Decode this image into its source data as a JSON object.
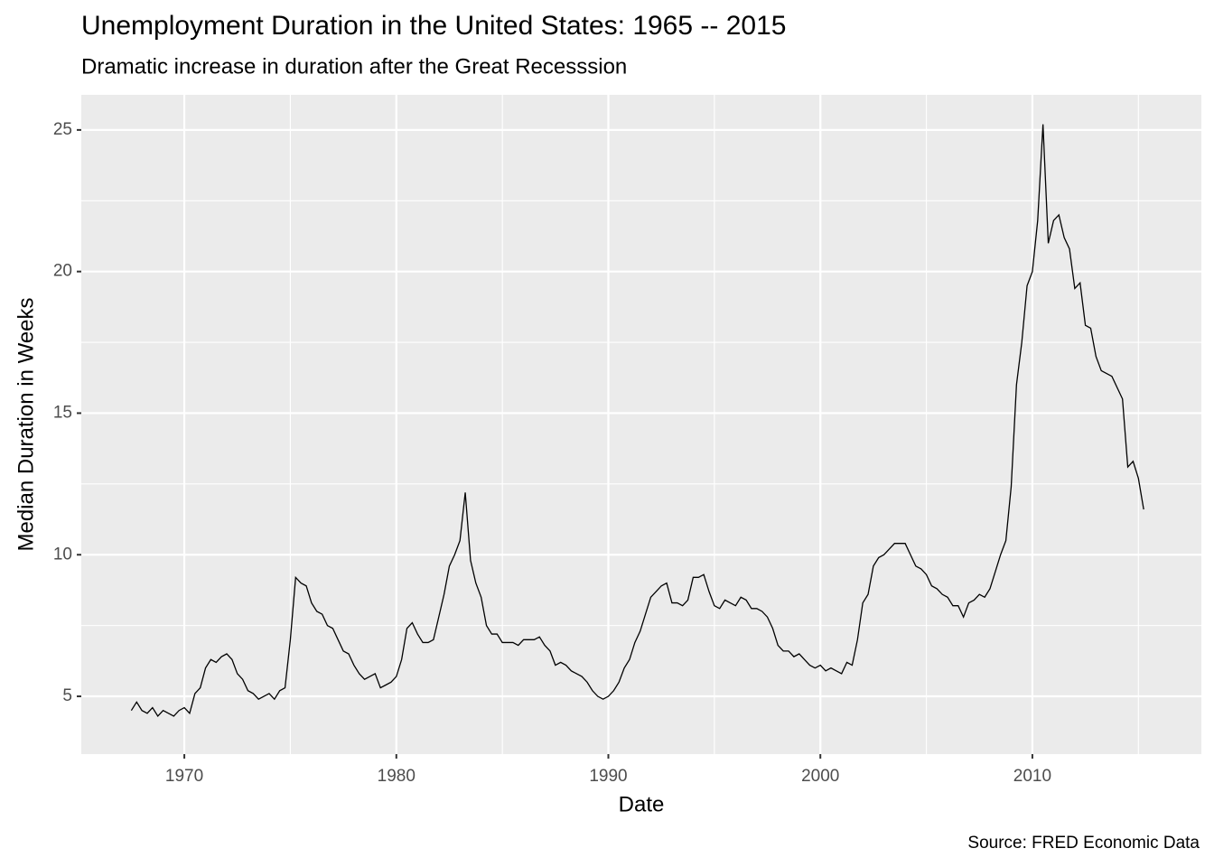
{
  "chart_data": {
    "type": "line",
    "title": "Unemployment Duration in the United States: 1965 -- 2015",
    "subtitle": "Dramatic increase in duration after the Great Recesssion",
    "x_label": "Date",
    "y_label": "Median Duration in Weeks",
    "caption": "Source: FRED Economic Data",
    "color": "#000000",
    "x": [
      1967.5,
      1967.75,
      1968,
      1968.25,
      1968.5,
      1968.75,
      1969,
      1969.25,
      1969.5,
      1969.75,
      1970,
      1970.25,
      1970.5,
      1970.75,
      1971,
      1971.25,
      1971.5,
      1971.75,
      1972,
      1972.25,
      1972.5,
      1972.75,
      1973,
      1973.25,
      1973.5,
      1973.75,
      1974,
      1974.25,
      1974.5,
      1974.75,
      1975,
      1975.25,
      1975.5,
      1975.75,
      1976,
      1976.25,
      1976.5,
      1976.75,
      1977,
      1977.25,
      1977.5,
      1977.75,
      1978,
      1978.25,
      1978.5,
      1978.75,
      1979,
      1979.25,
      1979.5,
      1979.75,
      1980,
      1980.25,
      1980.5,
      1980.75,
      1981,
      1981.25,
      1981.5,
      1981.75,
      1982,
      1982.25,
      1982.5,
      1982.75,
      1983,
      1983.25,
      1983.5,
      1983.75,
      1984,
      1984.25,
      1984.5,
      1984.75,
      1985,
      1985.25,
      1985.5,
      1985.75,
      1986,
      1986.25,
      1986.5,
      1986.75,
      1987,
      1987.25,
      1987.5,
      1987.75,
      1988,
      1988.25,
      1988.5,
      1988.75,
      1989,
      1989.25,
      1989.5,
      1989.75,
      1990,
      1990.25,
      1990.5,
      1990.75,
      1991,
      1991.25,
      1991.5,
      1991.75,
      1992,
      1992.25,
      1992.5,
      1992.75,
      1993,
      1993.25,
      1993.5,
      1993.75,
      1994,
      1994.25,
      1994.5,
      1994.75,
      1995,
      1995.25,
      1995.5,
      1995.75,
      1996,
      1996.25,
      1996.5,
      1996.75,
      1997,
      1997.25,
      1997.5,
      1997.75,
      1998,
      1998.25,
      1998.5,
      1998.75,
      1999,
      1999.25,
      1999.5,
      1999.75,
      2000,
      2000.25,
      2000.5,
      2000.75,
      2001,
      2001.25,
      2001.5,
      2001.75,
      2002,
      2002.25,
      2002.5,
      2002.75,
      2003,
      2003.25,
      2003.5,
      2003.75,
      2004,
      2004.25,
      2004.5,
      2004.75,
      2005,
      2005.25,
      2005.5,
      2005.75,
      2006,
      2006.25,
      2006.5,
      2006.75,
      2007,
      2007.25,
      2007.5,
      2007.75,
      2008,
      2008.25,
      2008.5,
      2008.75,
      2009,
      2009.25,
      2009.5,
      2009.75,
      2010,
      2010.25,
      2010.5,
      2010.75,
      2011,
      2011.25,
      2011.5,
      2011.75,
      2012,
      2012.25,
      2012.5,
      2012.75,
      2013,
      2013.25,
      2013.5,
      2013.75,
      2014,
      2014.25,
      2014.5,
      2014.75,
      2015,
      2015.25
    ],
    "values": [
      4.5,
      4.8,
      4.5,
      4.4,
      4.6,
      4.3,
      4.5,
      4.4,
      4.3,
      4.5,
      4.6,
      4.4,
      5.1,
      5.3,
      6.0,
      6.3,
      6.2,
      6.4,
      6.5,
      6.3,
      5.8,
      5.6,
      5.2,
      5.1,
      4.9,
      5.0,
      5.1,
      4.9,
      5.2,
      5.3,
      7.0,
      9.2,
      9.0,
      8.9,
      8.3,
      8.0,
      7.9,
      7.5,
      7.4,
      7.0,
      6.6,
      6.5,
      6.1,
      5.8,
      5.6,
      5.7,
      5.8,
      5.3,
      5.4,
      5.5,
      5.7,
      6.3,
      7.4,
      7.6,
      7.2,
      6.9,
      6.9,
      7.0,
      7.8,
      8.6,
      9.6,
      10.0,
      10.5,
      12.2,
      9.8,
      9.0,
      8.5,
      7.5,
      7.2,
      7.2,
      6.9,
      6.9,
      6.9,
      6.8,
      7.0,
      7.0,
      7.0,
      7.1,
      6.8,
      6.6,
      6.1,
      6.2,
      6.1,
      5.9,
      5.8,
      5.7,
      5.5,
      5.2,
      5.0,
      4.9,
      5.0,
      5.2,
      5.5,
      6.0,
      6.3,
      6.9,
      7.3,
      7.9,
      8.5,
      8.7,
      8.9,
      9.0,
      8.3,
      8.3,
      8.2,
      8.4,
      9.2,
      9.2,
      9.3,
      8.7,
      8.2,
      8.1,
      8.4,
      8.3,
      8.2,
      8.5,
      8.4,
      8.1,
      8.1,
      8.0,
      7.8,
      7.4,
      6.8,
      6.6,
      6.6,
      6.4,
      6.5,
      6.3,
      6.1,
      6.0,
      6.1,
      5.9,
      6.0,
      5.9,
      5.8,
      6.2,
      6.1,
      7.0,
      8.3,
      8.6,
      9.6,
      9.9,
      10.0,
      10.2,
      10.4,
      10.4,
      10.4,
      10.0,
      9.6,
      9.5,
      9.3,
      8.9,
      8.8,
      8.6,
      8.5,
      8.2,
      8.2,
      7.8,
      8.3,
      8.4,
      8.6,
      8.5,
      8.8,
      9.4,
      10.0,
      10.5,
      12.4,
      16.0,
      17.5,
      19.5,
      20.0,
      21.8,
      25.2,
      21.0,
      21.8,
      22.0,
      21.2,
      20.8,
      19.4,
      19.6,
      18.1,
      18.0,
      17.0,
      16.5,
      16.4,
      16.3,
      15.9,
      15.5,
      13.1,
      13.3,
      12.7,
      11.6
    ],
    "xlim": [
      1965.14,
      2017.97
    ],
    "xticks": [
      1970,
      1980,
      1990,
      2000,
      2010
    ],
    "ylim": [
      2.96,
      26.24
    ],
    "yticks": [
      5,
      10,
      15,
      20,
      25
    ],
    "grid": true
  }
}
